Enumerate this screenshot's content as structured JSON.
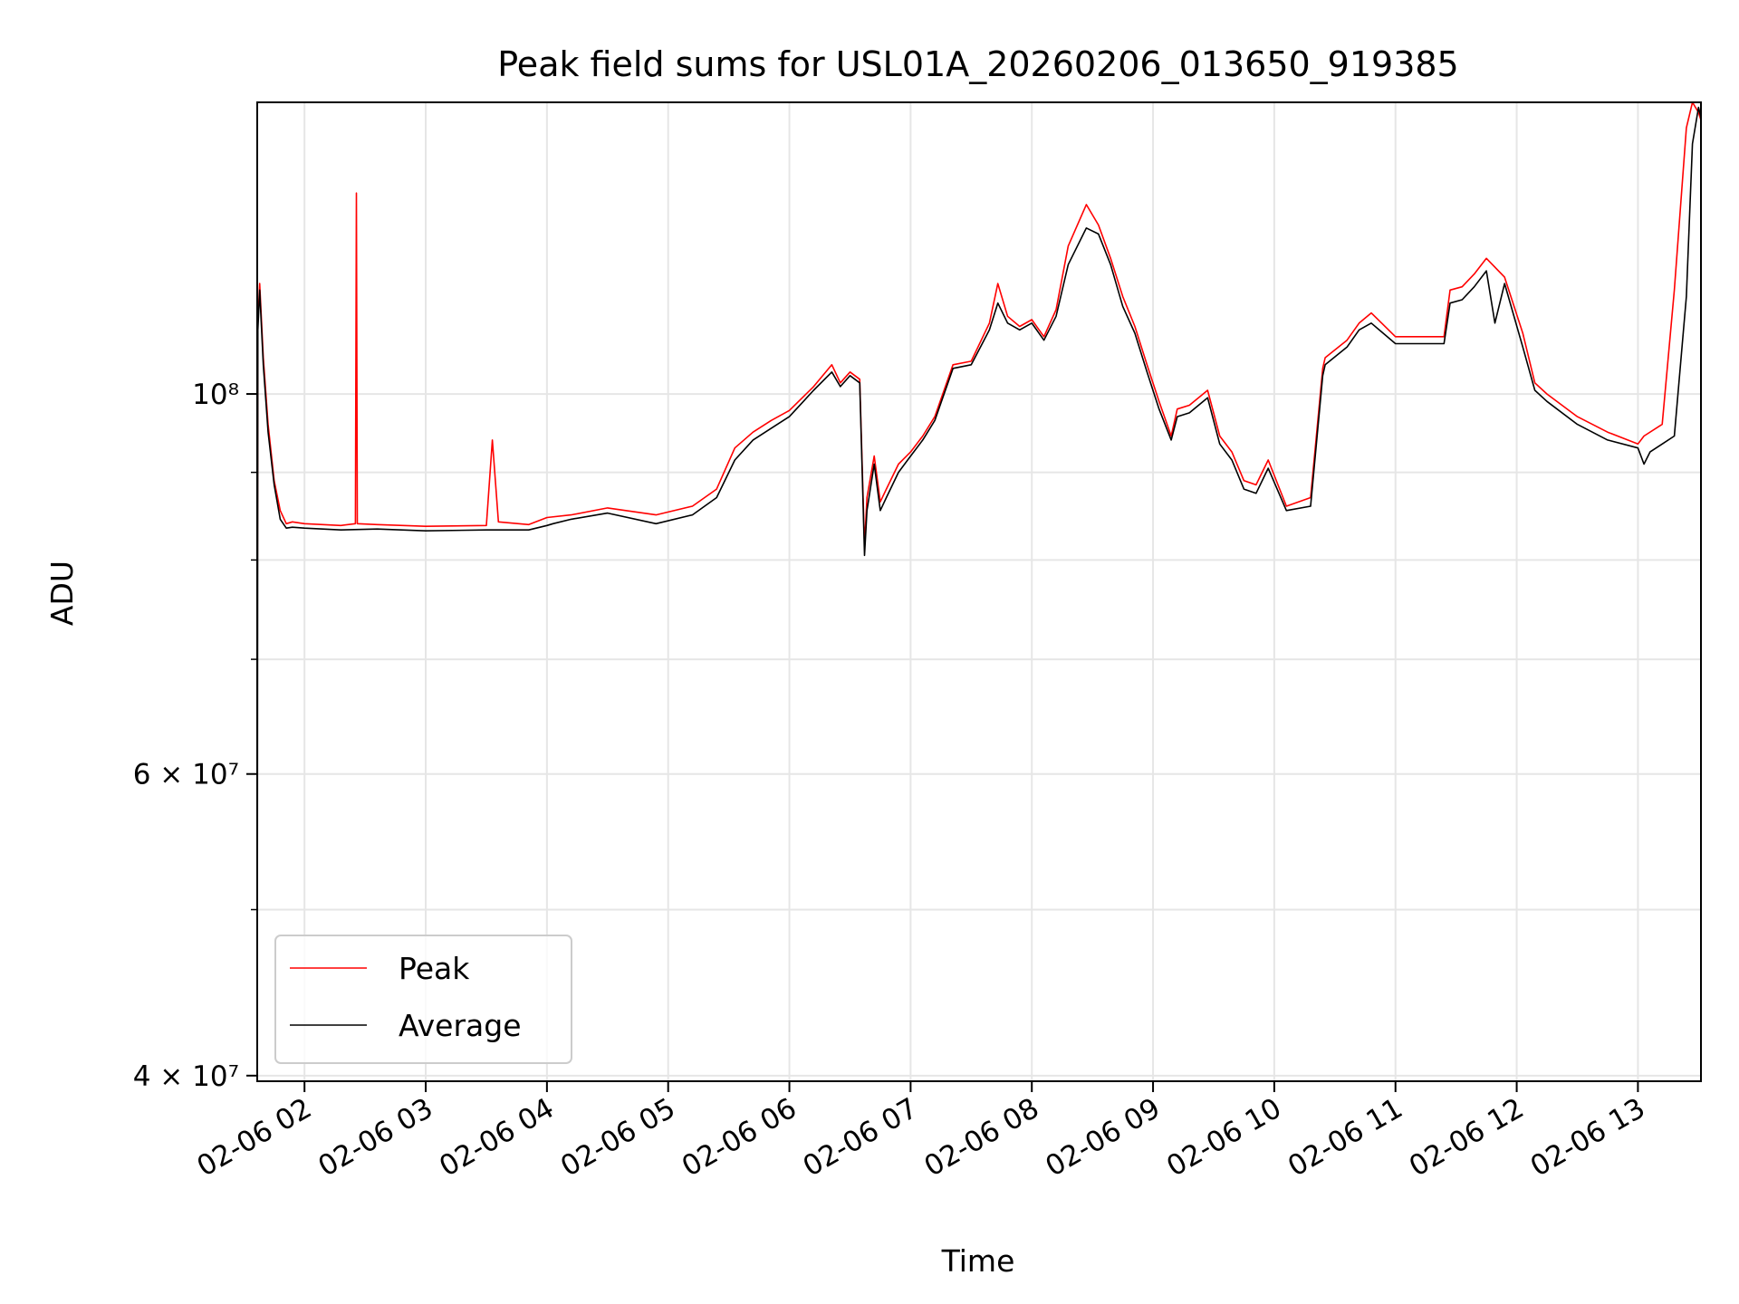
{
  "chart_data": {
    "type": "line",
    "title": "Peak field sums for USL01A_20260206_013650_919385",
    "xlabel": "Time",
    "ylabel": "ADU",
    "yscale": "log",
    "ylim": [
      39700000,
      148000000
    ],
    "xlim_hours": [
      1.61,
      13.52
    ],
    "x_unit": "hours since 2026-02-06 00:00",
    "grid": true,
    "legend_position": "lower-left",
    "x_ticks": [
      {
        "value": 2,
        "label": "02-06 02"
      },
      {
        "value": 3,
        "label": "02-06 03"
      },
      {
        "value": 4,
        "label": "02-06 04"
      },
      {
        "value": 5,
        "label": "02-06 05"
      },
      {
        "value": 6,
        "label": "02-06 06"
      },
      {
        "value": 7,
        "label": "02-06 07"
      },
      {
        "value": 8,
        "label": "02-06 08"
      },
      {
        "value": 9,
        "label": "02-06 09"
      },
      {
        "value": 10,
        "label": "02-06 10"
      },
      {
        "value": 11,
        "label": "02-06 11"
      },
      {
        "value": 12,
        "label": "02-06 12"
      },
      {
        "value": 13,
        "label": "02-06 13"
      }
    ],
    "y_ticks_major": [
      {
        "value": 40000000,
        "label": "4 × 10⁷"
      },
      {
        "value": 60000000,
        "label": "6 × 10⁷"
      },
      {
        "value": 100000000,
        "label": "10⁸"
      }
    ],
    "y_ticks_minor": [
      50000000,
      70000000,
      80000000,
      90000000
    ],
    "series": [
      {
        "name": "Peak",
        "color": "#ff0000",
        "x": [
          1.61,
          1.615,
          1.63,
          1.66,
          1.7,
          1.75,
          1.8,
          1.85,
          1.9,
          2.0,
          2.3,
          2.42,
          2.428,
          2.436,
          2.6,
          3.0,
          3.5,
          3.55,
          3.6,
          3.85,
          4.0,
          4.2,
          4.5,
          4.9,
          5.2,
          5.4,
          5.55,
          5.7,
          5.85,
          6.0,
          6.2,
          6.35,
          6.42,
          6.5,
          6.58,
          6.62,
          6.64,
          6.7,
          6.75,
          6.8,
          6.9,
          7.0,
          7.1,
          7.2,
          7.35,
          7.5,
          7.65,
          7.72,
          7.8,
          7.9,
          8.0,
          8.1,
          8.2,
          8.3,
          8.45,
          8.55,
          8.65,
          8.75,
          8.85,
          8.95,
          9.05,
          9.15,
          9.2,
          9.3,
          9.45,
          9.55,
          9.65,
          9.75,
          9.85,
          9.95,
          10.1,
          10.3,
          10.4,
          10.42,
          10.6,
          10.7,
          10.8,
          11.0,
          11.4,
          11.45,
          11.55,
          11.65,
          11.75,
          11.9,
          12.05,
          12.15,
          12.25,
          12.5,
          12.75,
          13.0,
          13.05,
          13.2,
          13.3,
          13.4,
          13.45,
          13.5,
          13.52
        ],
        "y": [
          68000000,
          110000000,
          116000000,
          105000000,
          96000000,
          89000000,
          85500000,
          84000000,
          84200000,
          84000000,
          83800000,
          84000000,
          131000000,
          84000000,
          83900000,
          83700000,
          83800000,
          94000000,
          84200000,
          83900000,
          84700000,
          85000000,
          85800000,
          85000000,
          86000000,
          88000000,
          93000000,
          95000000,
          96500000,
          97800000,
          101000000,
          104000000,
          101500000,
          103000000,
          102000000,
          81500000,
          87000000,
          92000000,
          86500000,
          88000000,
          91000000,
          92500000,
          94500000,
          97000000,
          104000000,
          104500000,
          110000000,
          116000000,
          111000000,
          109500000,
          110500000,
          108000000,
          112000000,
          122000000,
          129000000,
          125500000,
          120000000,
          114000000,
          109500000,
          104000000,
          99000000,
          94500000,
          98000000,
          98500000,
          100500000,
          94500000,
          92500000,
          89000000,
          88500000,
          91500000,
          86000000,
          87000000,
          103500000,
          105000000,
          107500000,
          110000000,
          111500000,
          108000000,
          108000000,
          115000000,
          115500000,
          117500000,
          120000000,
          117000000,
          108500000,
          101500000,
          100000000,
          97000000,
          95000000,
          93500000,
          94500000,
          96000000,
          115000000,
          143000000,
          148000000,
          146000000,
          144500000
        ]
      },
      {
        "name": "Average",
        "color": "#000000",
        "x": [
          1.61,
          1.615,
          1.63,
          1.66,
          1.7,
          1.75,
          1.8,
          1.85,
          1.9,
          2.0,
          2.3,
          2.6,
          3.0,
          3.5,
          3.85,
          4.0,
          4.05,
          4.2,
          4.5,
          4.9,
          5.2,
          5.4,
          5.55,
          5.7,
          5.85,
          6.0,
          6.2,
          6.35,
          6.42,
          6.5,
          6.58,
          6.62,
          6.64,
          6.7,
          6.75,
          6.8,
          6.9,
          7.0,
          7.1,
          7.2,
          7.35,
          7.5,
          7.65,
          7.72,
          7.8,
          7.9,
          8.0,
          8.1,
          8.2,
          8.3,
          8.45,
          8.55,
          8.65,
          8.75,
          8.85,
          8.95,
          9.05,
          9.15,
          9.2,
          9.3,
          9.45,
          9.55,
          9.65,
          9.75,
          9.85,
          9.95,
          10.1,
          10.3,
          10.4,
          10.42,
          10.6,
          10.7,
          10.8,
          11.0,
          11.4,
          11.45,
          11.55,
          11.65,
          11.75,
          11.82,
          11.9,
          12.05,
          12.15,
          12.25,
          12.5,
          12.75,
          13.0,
          13.05,
          13.1,
          13.2,
          13.3,
          13.4,
          13.45,
          13.5,
          13.52
        ],
        "y": [
          40000000,
          109000000,
          115000000,
          104000000,
          95000000,
          88500000,
          84500000,
          83500000,
          83600000,
          83500000,
          83300000,
          83400000,
          83200000,
          83300000,
          83300000,
          83800000,
          84000000,
          84500000,
          85200000,
          84000000,
          85000000,
          87000000,
          91500000,
          94000000,
          95500000,
          97000000,
          100500000,
          103000000,
          101000000,
          102500000,
          101500000,
          80500000,
          85500000,
          91000000,
          85500000,
          87000000,
          90000000,
          92000000,
          94000000,
          96500000,
          103500000,
          104000000,
          109000000,
          113000000,
          110000000,
          109000000,
          110000000,
          107500000,
          111000000,
          119000000,
          125000000,
          124000000,
          119000000,
          112500000,
          108500000,
          103000000,
          98000000,
          94000000,
          97000000,
          97500000,
          99500000,
          93500000,
          91500000,
          88000000,
          87500000,
          90500000,
          85500000,
          86000000,
          102500000,
          104000000,
          106500000,
          109000000,
          110000000,
          107000000,
          107000000,
          113000000,
          113500000,
          115500000,
          118000000,
          110000000,
          116000000,
          106500000,
          100500000,
          99000000,
          96000000,
          94000000,
          93000000,
          91000000,
          92500000,
          93500000,
          94500000,
          114000000,
          140000000,
          147000000,
          145000000
        ]
      }
    ]
  }
}
